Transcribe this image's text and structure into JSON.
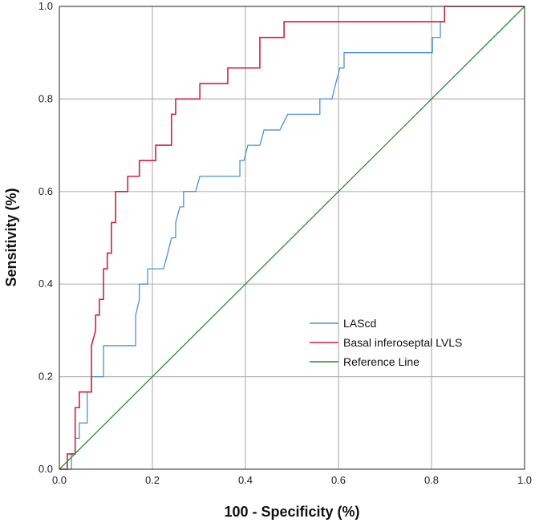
{
  "chart_data": {
    "type": "line",
    "title": "",
    "xlabel": "100 - Specificity (%)",
    "ylabel": "Sensitivity (%)",
    "xlim": [
      0,
      1
    ],
    "ylim": [
      0,
      1
    ],
    "x_ticks": [
      "0.0",
      "0.2",
      "0.4",
      "0.6",
      "0.8",
      "1.0"
    ],
    "y_ticks": [
      "0.0",
      "0.2",
      "0.4",
      "0.6",
      "0.8",
      "1.0"
    ],
    "grid": true,
    "legend_position": "lower-right",
    "series": [
      {
        "name": "LAScd",
        "color": "#4a90d9",
        "points": [
          [
            0.0,
            0.0
          ],
          [
            0.026,
            0.0
          ],
          [
            0.026,
            0.033
          ],
          [
            0.034,
            0.033
          ],
          [
            0.034,
            0.067
          ],
          [
            0.043,
            0.067
          ],
          [
            0.043,
            0.1
          ],
          [
            0.06,
            0.1
          ],
          [
            0.06,
            0.167
          ],
          [
            0.069,
            0.167
          ],
          [
            0.069,
            0.2
          ],
          [
            0.095,
            0.2
          ],
          [
            0.095,
            0.267
          ],
          [
            0.164,
            0.267
          ],
          [
            0.164,
            0.333
          ],
          [
            0.172,
            0.367
          ],
          [
            0.172,
            0.4
          ],
          [
            0.19,
            0.4
          ],
          [
            0.19,
            0.433
          ],
          [
            0.224,
            0.433
          ],
          [
            0.233,
            0.467
          ],
          [
            0.241,
            0.5
          ],
          [
            0.25,
            0.5
          ],
          [
            0.25,
            0.533
          ],
          [
            0.259,
            0.567
          ],
          [
            0.267,
            0.567
          ],
          [
            0.267,
            0.6
          ],
          [
            0.293,
            0.6
          ],
          [
            0.302,
            0.633
          ],
          [
            0.388,
            0.633
          ],
          [
            0.388,
            0.667
          ],
          [
            0.397,
            0.667
          ],
          [
            0.405,
            0.7
          ],
          [
            0.431,
            0.7
          ],
          [
            0.44,
            0.733
          ],
          [
            0.474,
            0.733
          ],
          [
            0.491,
            0.767
          ],
          [
            0.56,
            0.767
          ],
          [
            0.56,
            0.8
          ],
          [
            0.586,
            0.8
          ],
          [
            0.594,
            0.833
          ],
          [
            0.603,
            0.867
          ],
          [
            0.612,
            0.867
          ],
          [
            0.612,
            0.9
          ],
          [
            0.802,
            0.9
          ],
          [
            0.802,
            0.933
          ],
          [
            0.819,
            0.933
          ],
          [
            0.819,
            0.967
          ],
          [
            0.828,
            0.967
          ],
          [
            0.828,
            1.0
          ],
          [
            1.0,
            1.0
          ]
        ]
      },
      {
        "name": "Basal inferoseptal LVLS",
        "color": "#d41f3a",
        "points": [
          [
            0.0,
            0.0
          ],
          [
            0.017,
            0.0
          ],
          [
            0.017,
            0.033
          ],
          [
            0.034,
            0.033
          ],
          [
            0.034,
            0.1
          ],
          [
            0.034,
            0.133
          ],
          [
            0.043,
            0.133
          ],
          [
            0.043,
            0.167
          ],
          [
            0.069,
            0.167
          ],
          [
            0.069,
            0.267
          ],
          [
            0.078,
            0.3
          ],
          [
            0.078,
            0.333
          ],
          [
            0.086,
            0.333
          ],
          [
            0.086,
            0.367
          ],
          [
            0.095,
            0.367
          ],
          [
            0.095,
            0.433
          ],
          [
            0.103,
            0.433
          ],
          [
            0.103,
            0.467
          ],
          [
            0.112,
            0.467
          ],
          [
            0.112,
            0.533
          ],
          [
            0.121,
            0.533
          ],
          [
            0.121,
            0.6
          ],
          [
            0.147,
            0.6
          ],
          [
            0.147,
            0.633
          ],
          [
            0.172,
            0.633
          ],
          [
            0.172,
            0.667
          ],
          [
            0.207,
            0.667
          ],
          [
            0.207,
            0.7
          ],
          [
            0.241,
            0.7
          ],
          [
            0.241,
            0.767
          ],
          [
            0.25,
            0.767
          ],
          [
            0.25,
            0.8
          ],
          [
            0.302,
            0.8
          ],
          [
            0.302,
            0.833
          ],
          [
            0.362,
            0.833
          ],
          [
            0.362,
            0.867
          ],
          [
            0.431,
            0.867
          ],
          [
            0.431,
            0.933
          ],
          [
            0.483,
            0.933
          ],
          [
            0.483,
            0.967
          ],
          [
            0.828,
            0.967
          ],
          [
            0.828,
            1.0
          ],
          [
            1.0,
            1.0
          ]
        ]
      },
      {
        "name": "Reference Line",
        "color": "#2e8b3a",
        "points": [
          [
            0.0,
            0.0
          ],
          [
            1.0,
            1.0
          ]
        ]
      }
    ]
  }
}
